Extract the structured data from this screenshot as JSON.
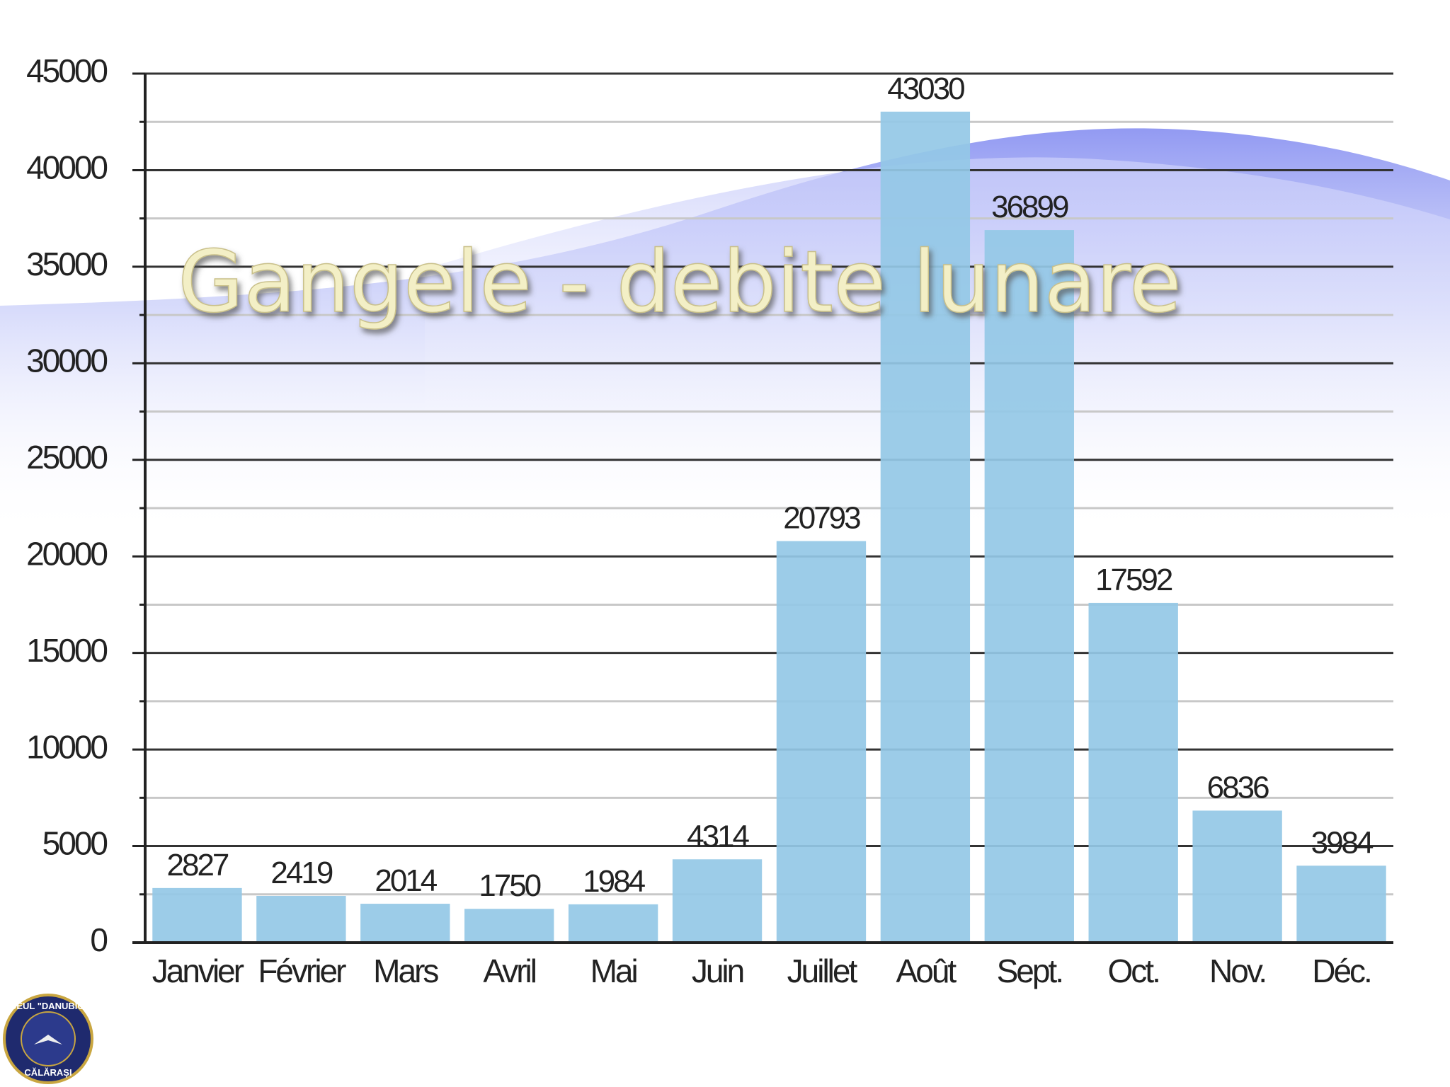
{
  "chart_data": {
    "type": "bar",
    "title": "Gangele -  debite lunare",
    "categories": [
      "Janvier",
      "Février",
      "Mars",
      "Avril",
      "Mai",
      "Juin",
      "Juillet",
      "Août",
      "Sept.",
      "Oct.",
      "Nov.",
      "Déc."
    ],
    "values": [
      2827,
      2419,
      2014,
      1750,
      1984,
      4314,
      20793,
      43030,
      36899,
      17592,
      6836,
      3984
    ],
    "color": "#94c8e6",
    "ylim": [
      0,
      45000
    ],
    "yticks": [
      0,
      5000,
      10000,
      15000,
      20000,
      25000,
      30000,
      35000,
      40000,
      45000
    ],
    "grid": true,
    "minor_grid": true
  },
  "logo": {
    "name": "LICEUL \"DANUBIUS\"",
    "city": "CĂLĂRAȘI"
  }
}
